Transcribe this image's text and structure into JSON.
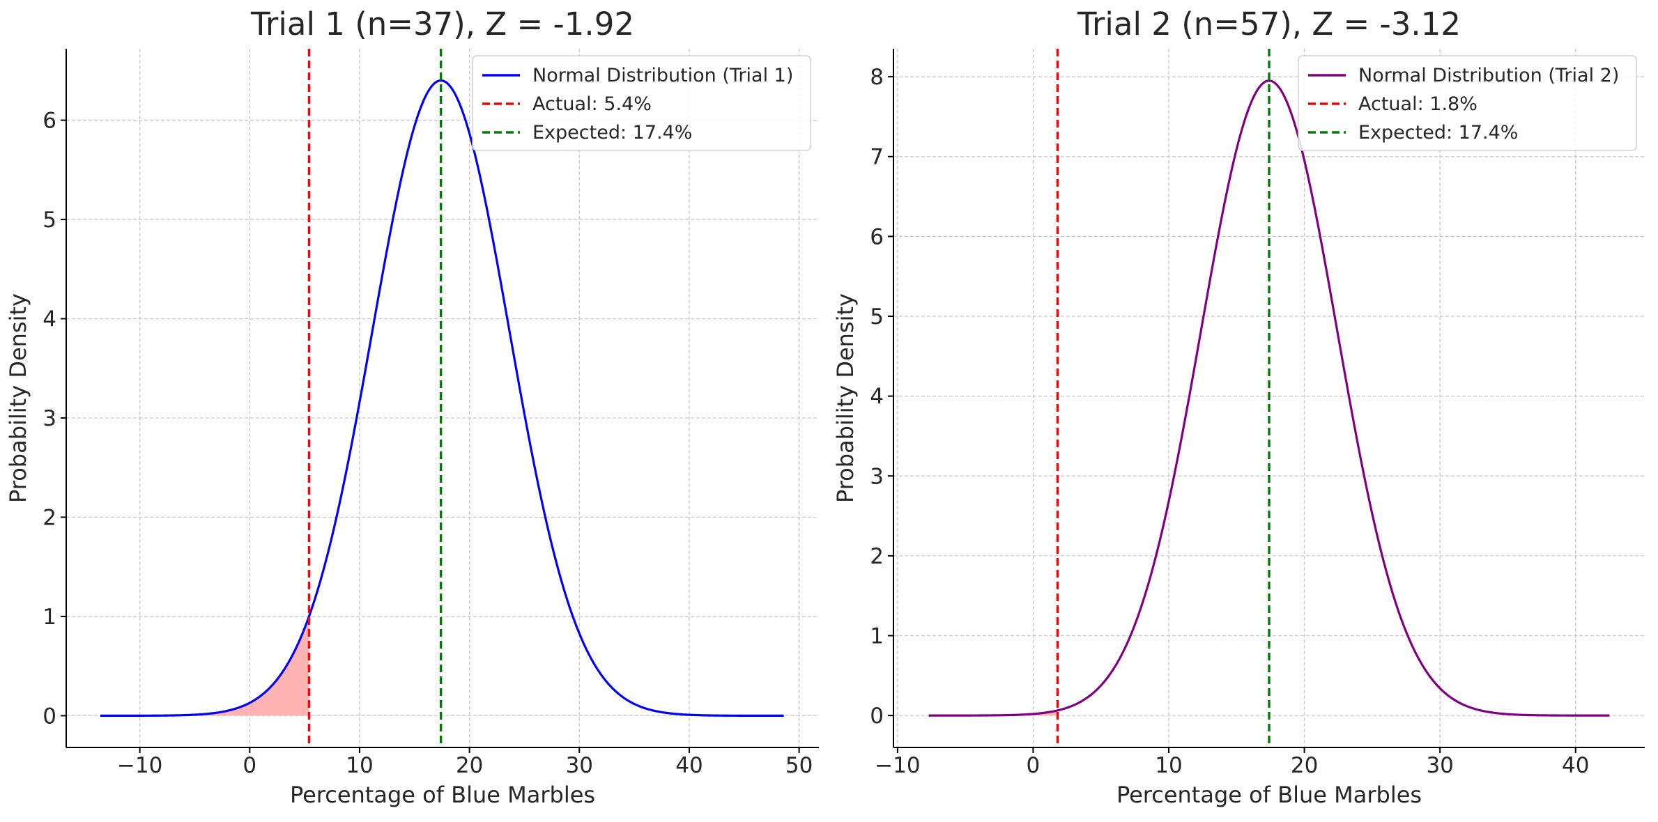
{
  "chart_data": [
    {
      "type": "line",
      "title": "Trial 1 (n=37), Z = -1.92",
      "xlabel": "Percentage of Blue Marbles",
      "ylabel": "Probability Density",
      "xlim": [
        -16.7,
        51.8
      ],
      "ylim": [
        -0.32,
        6.72
      ],
      "xticks": [
        -10,
        0,
        10,
        20,
        30,
        40,
        50
      ],
      "yticks": [
        0,
        1,
        2,
        3,
        4,
        5,
        6
      ],
      "xtick_labels": [
        "−10",
        "0",
        "10",
        "20",
        "30",
        "40",
        "50"
      ],
      "ytick_labels": [
        "0",
        "1",
        "2",
        "3",
        "4",
        "5",
        "6"
      ],
      "grid": true,
      "legend_position": "top-right",
      "series": [
        {
          "name": "Normal Distribution (Trial 1)",
          "kind": "normal-curve",
          "mean": 17.4,
          "std": 6.23,
          "x_range": [
            -13.6,
            48.6
          ],
          "peak_density": 6.4,
          "color": "#0000ff",
          "style": "solid"
        },
        {
          "name": "Actual: 5.4%",
          "kind": "vline",
          "x": 5.4,
          "color": "#ff0000",
          "style": "dashed"
        },
        {
          "name": "Expected: 17.4%",
          "kind": "vline",
          "x": 17.4,
          "color": "#008000",
          "style": "dashed"
        }
      ],
      "shaded_region": {
        "from": -13.6,
        "to": 5.4,
        "color": "#ffb3b3"
      }
    },
    {
      "type": "line",
      "title": "Trial 2 (n=57), Z = -3.12",
      "xlabel": "Percentage of Blue Marbles",
      "ylabel": "Probability Density",
      "xlim": [
        -10.3,
        45.1
      ],
      "ylim": [
        -0.4,
        8.35
      ],
      "xticks": [
        -10,
        0,
        10,
        20,
        30,
        40
      ],
      "yticks": [
        0,
        1,
        2,
        3,
        4,
        5,
        6,
        7,
        8
      ],
      "xtick_labels": [
        "−10",
        "0",
        "10",
        "20",
        "30",
        "40"
      ],
      "ytick_labels": [
        "0",
        "1",
        "2",
        "3",
        "4",
        "5",
        "6",
        "7",
        "8"
      ],
      "grid": true,
      "legend_position": "top-right",
      "series": [
        {
          "name": "Normal Distribution (Trial 2)",
          "kind": "normal-curve",
          "mean": 17.4,
          "std": 5.02,
          "x_range": [
            -7.7,
            42.5
          ],
          "peak_density": 7.95,
          "color": "#800080",
          "style": "solid"
        },
        {
          "name": "Actual: 1.8%",
          "kind": "vline",
          "x": 1.8,
          "color": "#ff0000",
          "style": "dashed"
        },
        {
          "name": "Expected: 17.4%",
          "kind": "vline",
          "x": 17.4,
          "color": "#008000",
          "style": "dashed"
        }
      ],
      "shaded_region": {
        "from": -7.7,
        "to": 1.8,
        "color": "#ffb3b3"
      }
    }
  ]
}
